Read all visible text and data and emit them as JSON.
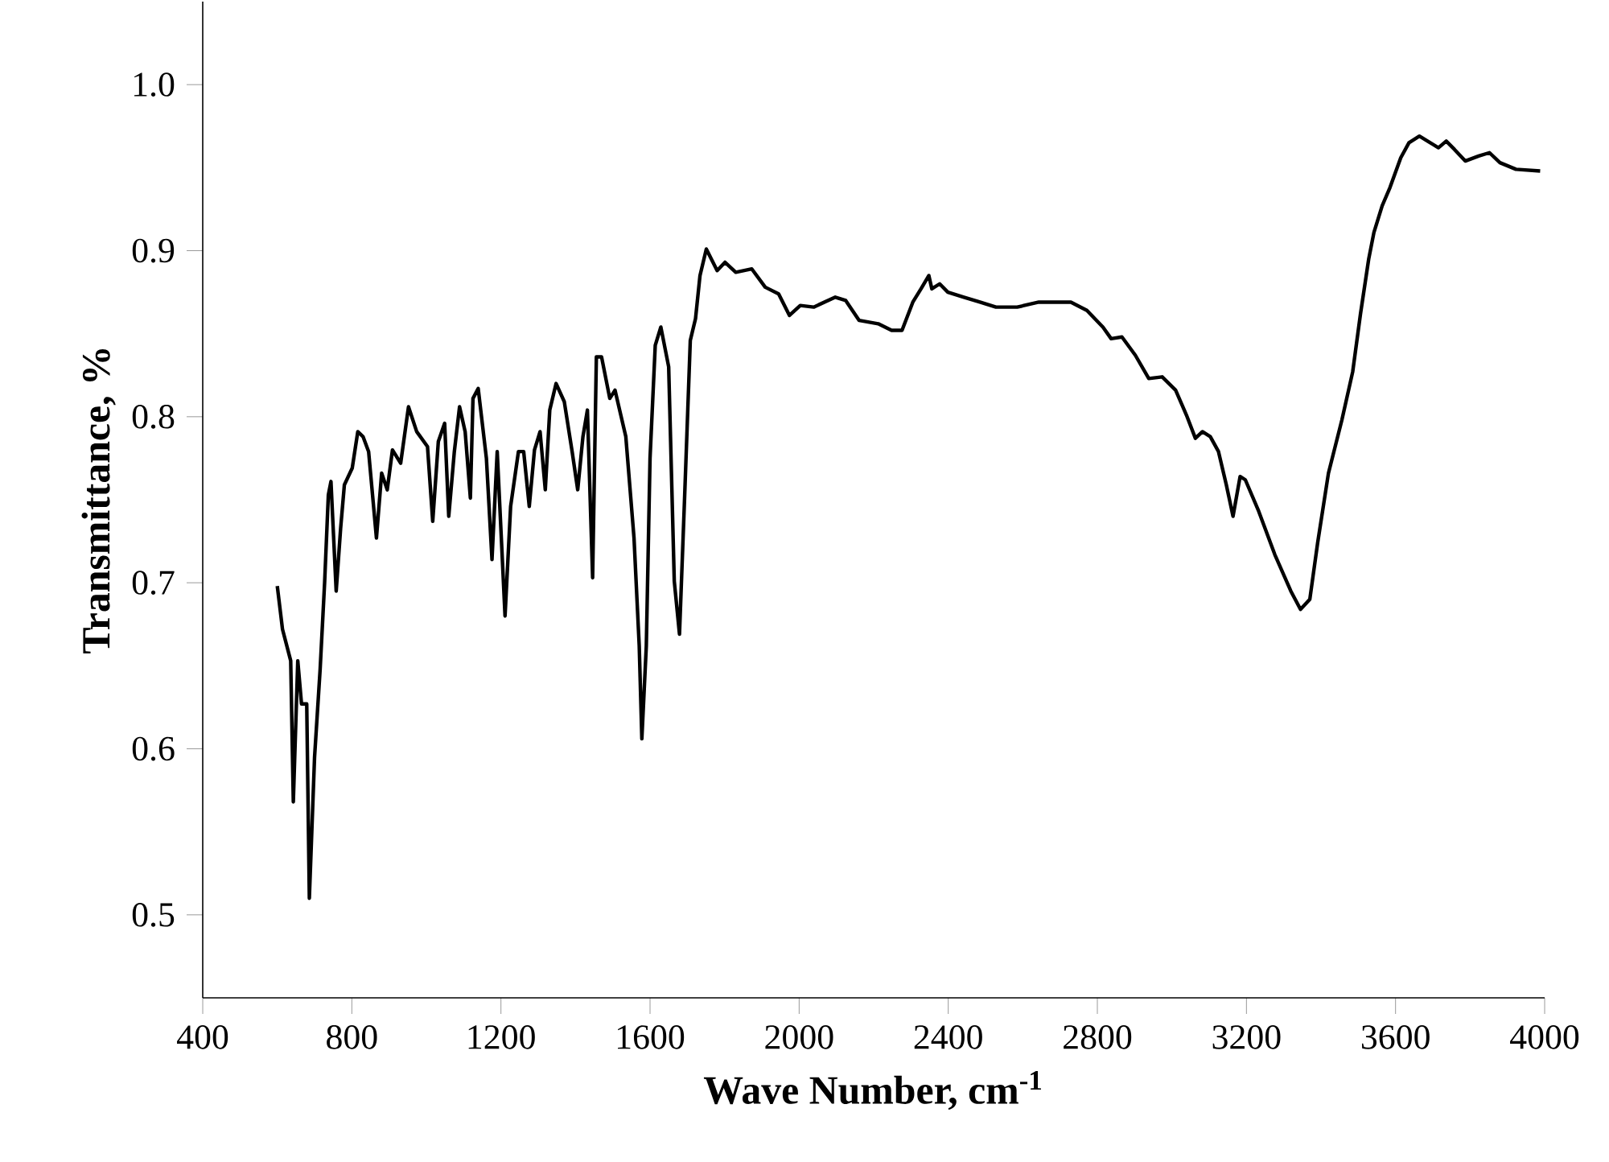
{
  "chart_data": {
    "type": "line",
    "xlabel": "Wave Number, cm$^{-1}$",
    "ylabel": "Transmittance, %",
    "xlim": [
      400,
      4000
    ],
    "ylim": [
      0.45,
      1.05
    ],
    "xticks": [
      400,
      800,
      1200,
      1600,
      2000,
      2400,
      2800,
      3200,
      3600,
      4000
    ],
    "yticks": [
      0.5,
      0.6,
      0.7,
      0.8,
      0.9,
      {
        "value": 1.0,
        "label": "1.0"
      }
    ],
    "line_style": "solid",
    "series": [
      {
        "color": "#000000",
        "x": [
          600,
          614,
          636,
          643,
          655,
          665,
          679,
          686,
          700,
          715,
          727,
          737,
          744,
          758,
          770,
          780,
          801,
          816,
          830,
          845,
          866,
          880,
          895,
          909,
          931,
          952,
          974,
          1003,
          1017,
          1032,
          1049,
          1060,
          1075,
          1089,
          1104,
          1118,
          1125,
          1139,
          1161,
          1176,
          1190,
          1211,
          1226,
          1247,
          1261,
          1276,
          1290,
          1305,
          1319,
          1331,
          1348,
          1370,
          1391,
          1406,
          1420,
          1432,
          1446,
          1456,
          1470,
          1492,
          1506,
          1535,
          1557,
          1571,
          1578,
          1590,
          1600,
          1614,
          1629,
          1650,
          1665,
          1679,
          1693,
          1708,
          1722,
          1734,
          1751,
          1780,
          1801,
          1830,
          1873,
          1909,
          1945,
          1974,
          2003,
          2039,
          2097,
          2125,
          2161,
          2212,
          2248,
          2276,
          2305,
          2327,
          2348,
          2356,
          2377,
          2399,
          2442,
          2485,
          2528,
          2585,
          2643,
          2729,
          2772,
          2815,
          2837,
          2866,
          2902,
          2938,
          2974,
          3010,
          3039,
          3063,
          3082,
          3103,
          3125,
          3146,
          3164,
          3183,
          3197,
          3233,
          3276,
          3319,
          3345,
          3370,
          3391,
          3420,
          3456,
          3485,
          3506,
          3528,
          3542,
          3564,
          3585,
          3614,
          3636,
          3664,
          3693,
          3715,
          3736,
          3758,
          3787,
          3823,
          3852,
          3880,
          3923,
          3988
        ],
        "values": [
          0.698,
          0.672,
          0.653,
          0.568,
          0.653,
          0.627,
          0.627,
          0.51,
          0.595,
          0.648,
          0.7,
          0.753,
          0.761,
          0.695,
          0.733,
          0.759,
          0.769,
          0.791,
          0.788,
          0.779,
          0.727,
          0.766,
          0.756,
          0.78,
          0.772,
          0.806,
          0.791,
          0.782,
          0.737,
          0.785,
          0.796,
          0.74,
          0.779,
          0.806,
          0.791,
          0.751,
          0.811,
          0.817,
          0.775,
          0.714,
          0.779,
          0.68,
          0.746,
          0.779,
          0.779,
          0.746,
          0.78,
          0.791,
          0.756,
          0.804,
          0.82,
          0.809,
          0.779,
          0.756,
          0.788,
          0.804,
          0.703,
          0.836,
          0.836,
          0.811,
          0.816,
          0.788,
          0.727,
          0.662,
          0.606,
          0.662,
          0.775,
          0.843,
          0.854,
          0.83,
          0.701,
          0.669,
          0.753,
          0.846,
          0.859,
          0.885,
          0.901,
          0.888,
          0.893,
          0.887,
          0.889,
          0.878,
          0.874,
          0.861,
          0.867,
          0.866,
          0.872,
          0.87,
          0.858,
          0.856,
          0.852,
          0.852,
          0.869,
          0.877,
          0.885,
          0.877,
          0.88,
          0.875,
          0.872,
          0.869,
          0.866,
          0.866,
          0.869,
          0.869,
          0.864,
          0.854,
          0.847,
          0.848,
          0.837,
          0.823,
          0.824,
          0.816,
          0.801,
          0.787,
          0.791,
          0.788,
          0.779,
          0.759,
          0.74,
          0.764,
          0.762,
          0.743,
          0.717,
          0.695,
          0.684,
          0.69,
          0.724,
          0.766,
          0.798,
          0.827,
          0.862,
          0.895,
          0.911,
          0.927,
          0.938,
          0.956,
          0.965,
          0.969,
          0.965,
          0.962,
          0.966,
          0.961,
          0.954,
          0.957,
          0.959,
          0.953,
          0.949,
          0.948
        ]
      }
    ]
  }
}
